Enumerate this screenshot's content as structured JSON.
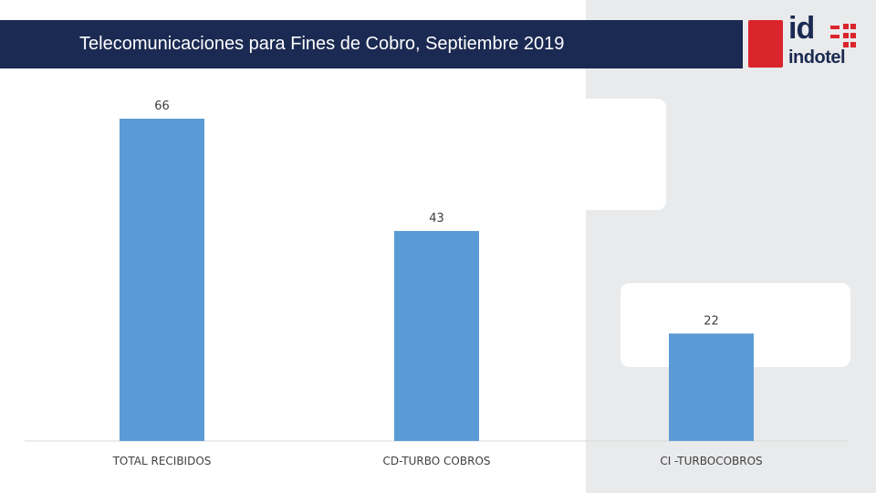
{
  "header": {
    "title": "Telecomunicaciones para Fines de Cobro, Septiembre 2019"
  },
  "logo": {
    "mark": "id",
    "name": "indotel"
  },
  "colors": {
    "bar": "#5b9bd5",
    "header_bg": "#1b2a52",
    "brand_red": "#d9252b"
  },
  "chart_data": {
    "type": "bar",
    "categories": [
      "TOTAL RECIBIDOS",
      "CD-TURBO COBROS",
      "CI -TURBOCOBROS"
    ],
    "values": [
      66,
      43,
      22
    ],
    "title": "",
    "xlabel": "",
    "ylabel": "",
    "ylim": [
      0,
      70
    ],
    "grid": false,
    "data_labels": true
  }
}
